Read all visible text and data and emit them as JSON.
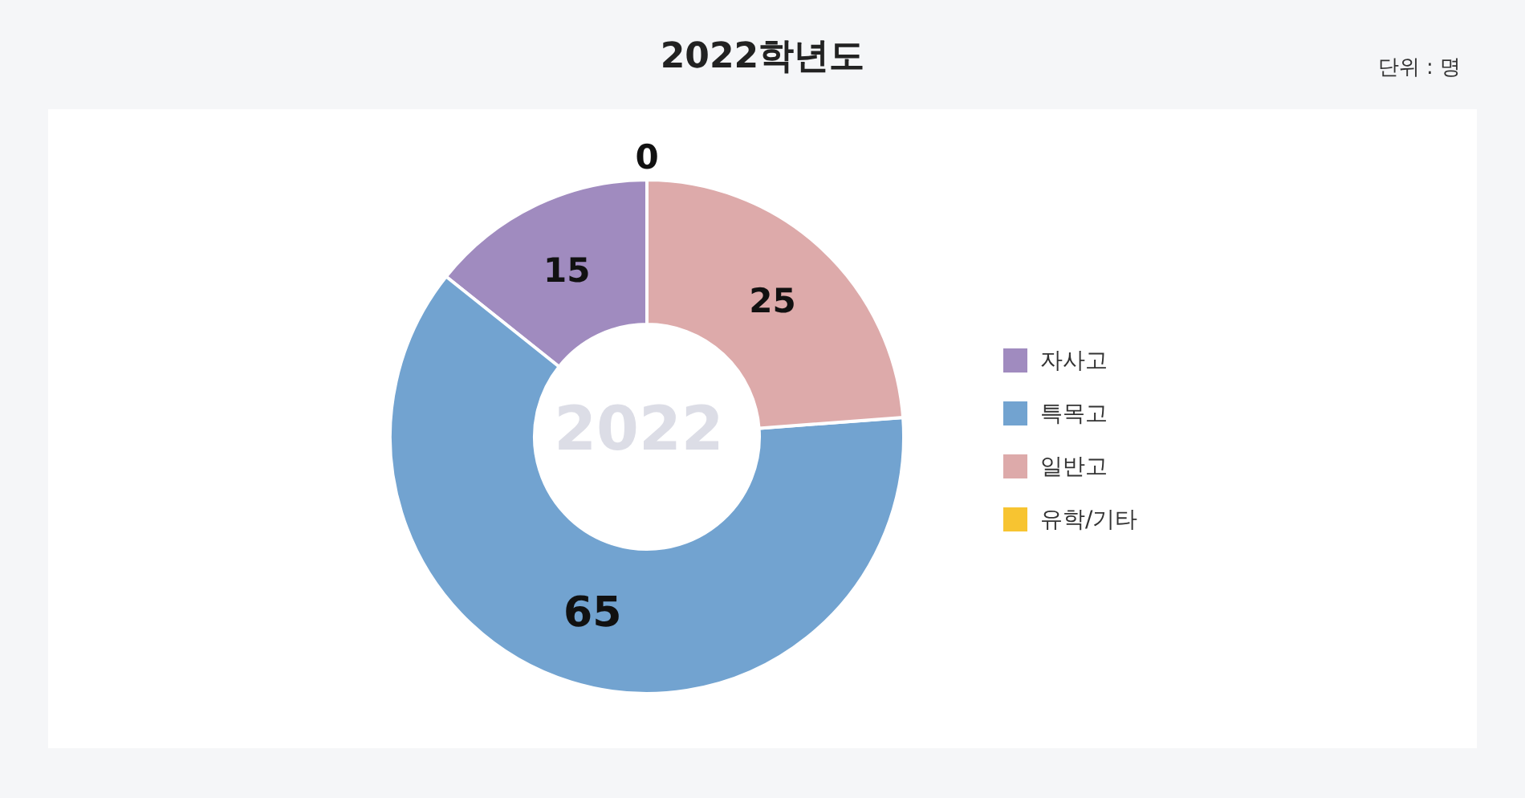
{
  "chart_data": {
    "type": "donut",
    "title": "2022학년도",
    "categories": [
      "자사고",
      "특목고",
      "일반고",
      "유학/기타"
    ],
    "values": [
      15,
      65,
      25,
      0
    ],
    "colors": [
      "#a08bbf",
      "#72a3d0",
      "#ddaaaa",
      "#f7c431"
    ],
    "value_labels": [
      "15",
      "65",
      "25",
      "0"
    ],
    "legend": "right",
    "annotations": [
      "단위 : 명",
      "2022"
    ]
  }
}
